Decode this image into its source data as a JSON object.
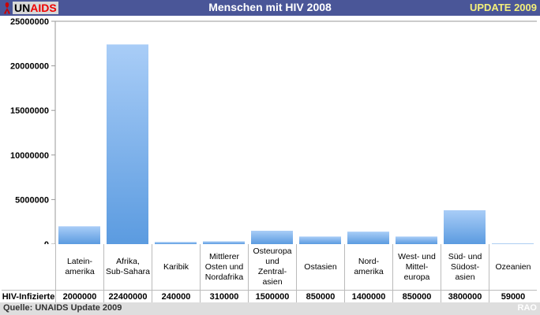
{
  "header": {
    "logo_un": "UN",
    "logo_aids": "AIDS",
    "title": "Menschen mit HIV 2008",
    "update": "UPDATE 2009"
  },
  "footer": {
    "source": "Quelle: UNAIDS Update 2009",
    "credit": "RAO"
  },
  "chart_data": {
    "type": "bar",
    "title": "Menschen mit HIV 2008",
    "categories": [
      "Latein-\namerika",
      "Afrika,\nSub-Sahara",
      "Karibik",
      "Mittlerer\nOsten und\nNordafrika",
      "Osteuropa\nund\nZentral-\nasien",
      "Ostasien",
      "Nord-\namerika",
      "West- und\nMittel-\neuropa",
      "Süd- und\nSüdost-\nasien",
      "Ozeanien"
    ],
    "series": [
      {
        "name": "HIV-Infizierte",
        "values": [
          2000000,
          22400000,
          240000,
          310000,
          1500000,
          850000,
          1400000,
          850000,
          3800000,
          59000
        ]
      }
    ],
    "value_labels": [
      "2000000",
      "22400000",
      "240000",
      "310000",
      "1500000",
      "850000",
      "1400000",
      "850000",
      "3800000",
      "59000"
    ],
    "ylim": [
      0,
      25000000
    ],
    "yticks": [
      "0",
      "5000000",
      "10000000",
      "15000000",
      "20000000",
      "25000000"
    ],
    "bar_color": "#5b9be0",
    "grid": false
  }
}
